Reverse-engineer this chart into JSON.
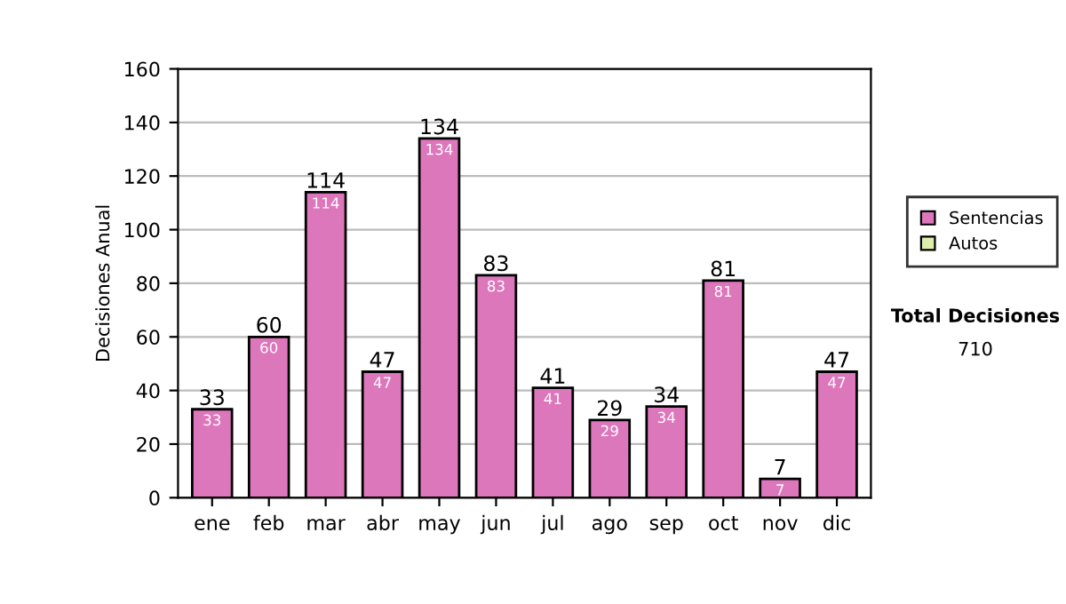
{
  "chart_data": {
    "type": "bar",
    "ylabel": "Decisiones Anual",
    "categories": [
      "ene",
      "feb",
      "mar",
      "abr",
      "may",
      "jun",
      "jul",
      "ago",
      "sep",
      "oct",
      "nov",
      "dic"
    ],
    "series": [
      {
        "name": "Sentencias",
        "color": "#dd77bb",
        "values": [
          33,
          60,
          114,
          47,
          134,
          83,
          41,
          29,
          34,
          81,
          7,
          47
        ]
      },
      {
        "name": "Autos",
        "color": "#ddeeaa",
        "values": [
          null,
          null,
          null,
          null,
          null,
          null,
          null,
          null,
          null,
          null,
          null,
          null
        ]
      }
    ],
    "ylim": [
      0,
      160
    ],
    "yticks": [
      0,
      20,
      40,
      60,
      80,
      100,
      120,
      140,
      160
    ],
    "grid": "y",
    "legend": "right",
    "data_labels": true,
    "annotations": [
      "Total Decisiones",
      "710",
      {
        "text": "33",
        "x": "ene",
        "y": 33
      },
      {
        "text": "60",
        "x": "feb",
        "y": 60
      },
      {
        "text": "114",
        "x": "mar",
        "y": 114
      },
      {
        "text": "47",
        "x": "abr",
        "y": 47
      },
      {
        "text": "134",
        "x": "may",
        "y": 134
      },
      {
        "text": "83",
        "x": "jun",
        "y": 83
      },
      {
        "text": "41",
        "x": "jul",
        "y": 41
      },
      {
        "text": "29",
        "x": "ago",
        "y": 29
      },
      {
        "text": "34",
        "x": "sep",
        "y": 34
      },
      {
        "text": "81",
        "x": "oct",
        "y": 81
      },
      {
        "text": "7",
        "x": "nov",
        "y": 7
      },
      {
        "text": "47",
        "x": "dic",
        "y": 47
      }
    ]
  }
}
